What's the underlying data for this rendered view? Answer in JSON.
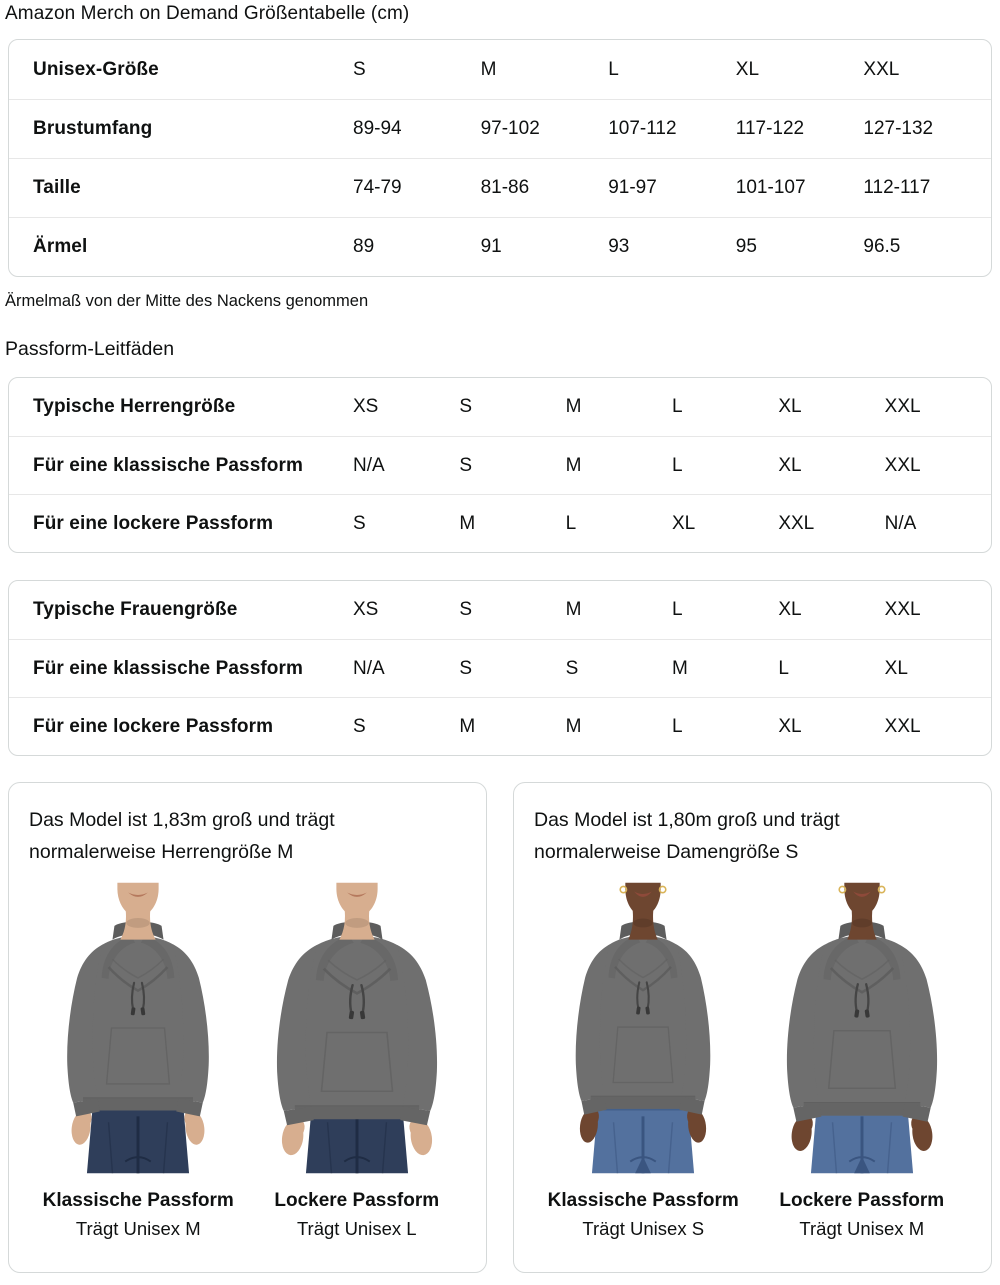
{
  "page": {
    "title": "Amazon Merch on Demand Größentabelle (cm)"
  },
  "tables": {
    "size_table": {
      "rows": [
        {
          "label": "Unisex-Größe",
          "values": [
            "S",
            "M",
            "L",
            "XL",
            "XXL"
          ]
        },
        {
          "label": "Brustumfang",
          "values": [
            "89-94",
            "97-102",
            "107-112",
            "117-122",
            "127-132"
          ]
        },
        {
          "label": "Taille",
          "values": [
            "74-79",
            "81-86",
            "91-97",
            "101-107",
            "112-117"
          ]
        },
        {
          "label": "Ärmel",
          "values": [
            "89",
            "91",
            "93",
            "95",
            "96.5"
          ]
        }
      ]
    },
    "mens_fit_table": {
      "rows": [
        {
          "label": "Typische Herrengröße",
          "values": [
            "XS",
            "S",
            "M",
            "L",
            "XL",
            "XXL"
          ]
        },
        {
          "label": "Für eine klassische Passform",
          "values": [
            "N/A",
            "S",
            "M",
            "L",
            "XL",
            "XXL"
          ]
        },
        {
          "label": "Für eine lockere Passform",
          "values": [
            "S",
            "M",
            "L",
            "XL",
            "XXL",
            "N/A"
          ]
        }
      ]
    },
    "womens_fit_table": {
      "rows": [
        {
          "label": "Typische Frauengröße",
          "values": [
            "XS",
            "S",
            "M",
            "L",
            "XL",
            "XXL"
          ]
        },
        {
          "label": "Für eine klassische Passform",
          "values": [
            "N/A",
            "S",
            "S",
            "M",
            "L",
            "XL"
          ]
        },
        {
          "label": "Für eine lockere Passform",
          "values": [
            "S",
            "M",
            "M",
            "L",
            "XL",
            "XXL"
          ]
        }
      ]
    }
  },
  "notes": {
    "sleeve_note": "Ärmelmaß von der Mitte des Nackens genommen"
  },
  "headings": {
    "fit_guides": "Passform-Leitfäden"
  },
  "model_cards": [
    {
      "description": "Das Model ist 1,83m groß und trägt normalerweise Herrengröße M",
      "models": [
        {
          "fit_label": "Klassische Passform",
          "size_label": "Trägt Unisex M",
          "figure": "male-classic"
        },
        {
          "fit_label": "Lockere Passform",
          "size_label": "Trägt Unisex L",
          "figure": "male-loose"
        }
      ]
    },
    {
      "description": "Das Model ist 1,80m groß und trägt normalerweise Damengröße S",
      "models": [
        {
          "fit_label": "Klassische Passform",
          "size_label": "Trägt Unisex S",
          "figure": "female-classic"
        },
        {
          "fit_label": "Lockere Passform",
          "size_label": "Trägt Unisex M",
          "figure": "female-loose"
        }
      ]
    }
  ],
  "colors": {
    "text": "#0f1111",
    "table_border": "#d5d9d9",
    "row_divider": "#e7e7e7",
    "hoodie": "#6f6f6f",
    "hoodie_shadow": "#5d5d5d",
    "hoodie_hem": "#656565",
    "male_skin": "#d7ae8f",
    "male_lips": "#b5795d",
    "female_skin": "#6e4630",
    "female_lips": "#8e4a3a",
    "male_jeans": "#2f3e5a",
    "male_jeans_dark": "#1f2c44",
    "female_jeans": "#53719e",
    "female_jeans_dark": "#3a5580",
    "earring_gold": "#d9b459"
  }
}
